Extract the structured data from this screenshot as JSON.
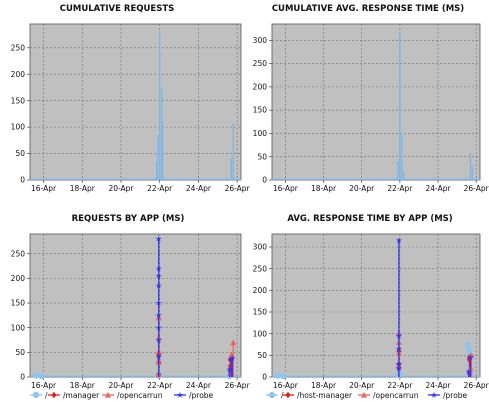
{
  "chart_data": [
    {
      "type": "bar",
      "title": "CUMULATIVE REQUESTS",
      "xlabel": "",
      "ylabel": "",
      "xticks": [
        "16-Apr",
        "18-Apr",
        "20-Apr",
        "22-Apr",
        "24-Apr",
        "26-Apr"
      ],
      "xlim": [
        15.3,
        26.2
      ],
      "ylim": [
        0,
        295
      ],
      "yticks": [
        0,
        50,
        100,
        150,
        200,
        250
      ],
      "grid": true,
      "series": [
        {
          "color": "#7eb6e6",
          "x": [
            15.6,
            15.9,
            16.2,
            16.6,
            17.0,
            18.1,
            20.6,
            21.6,
            21.8,
            21.85,
            21.9,
            22.0,
            22.1,
            22.15,
            25.5,
            25.7,
            25.8
          ],
          "values": [
            1,
            1,
            1,
            1,
            1,
            1,
            1,
            2,
            5,
            35,
            85,
            280,
            175,
            110,
            5,
            40,
            108
          ]
        }
      ]
    },
    {
      "type": "bar",
      "title": "CUMULATIVE AVG. RESPONSE TIME (MS)",
      "xlabel": "",
      "ylabel": "",
      "xticks": [
        "16-Apr",
        "18-Apr",
        "20-Apr",
        "22-Apr",
        "24-Apr",
        "26-Apr"
      ],
      "xlim": [
        15.3,
        26.2
      ],
      "ylim": [
        0,
        335
      ],
      "yticks": [
        0,
        50,
        100,
        150,
        200,
        250,
        300
      ],
      "grid": true,
      "series": [
        {
          "color": "#7eb6e6",
          "x": [
            15.6,
            16.0,
            17.0,
            18.1,
            20.6,
            21.6,
            21.8,
            21.9,
            22.0,
            22.1,
            22.2,
            25.5,
            25.7,
            25.8
          ],
          "values": [
            1,
            1,
            1,
            1,
            1,
            2,
            5,
            40,
            315,
            100,
            20,
            5,
            58,
            30
          ]
        }
      ]
    },
    {
      "type": "line",
      "title": "REQUESTS BY APP (MS)",
      "xlabel": "",
      "ylabel": "",
      "xticks": [
        "16-Apr",
        "18-Apr",
        "20-Apr",
        "22-Apr",
        "24-Apr",
        "26-Apr"
      ],
      "xlim": [
        15.3,
        26.2
      ],
      "ylim": [
        0,
        290
      ],
      "yticks": [
        0,
        50,
        100,
        150,
        200,
        250
      ],
      "grid": true,
      "legend": "bottom",
      "series": [
        {
          "name": "/",
          "color": "#8fc4ee",
          "marker": "circle",
          "x": [
            15.6,
            15.9,
            21.9,
            21.95,
            22.0,
            25.6,
            25.7
          ],
          "values": [
            3,
            2,
            3,
            6,
            4,
            2,
            5
          ]
        },
        {
          "name": "/manager",
          "color": "#e02020",
          "marker": "diamond",
          "x": [
            21.95,
            21.95,
            21.95,
            25.65,
            25.65
          ],
          "values": [
            5,
            30,
            45,
            22,
            35
          ]
        },
        {
          "name": "/opencarrun",
          "color": "#f06060",
          "marker": "triangle",
          "x": [
            21.95,
            21.95,
            21.95,
            21.95,
            21.95,
            25.65,
            25.7,
            25.8
          ],
          "values": [
            5,
            30,
            52,
            80,
            120,
            8,
            45,
            70
          ]
        },
        {
          "name": "/probe",
          "color": "#3535ee",
          "marker": "star",
          "x": [
            21.95,
            21.95,
            21.95,
            21.95,
            21.95,
            21.95,
            21.95,
            21.95,
            21.95,
            25.6,
            25.7,
            25.75
          ],
          "values": [
            40,
            75,
            100,
            125,
            150,
            185,
            205,
            220,
            280,
            15,
            35,
            38
          ]
        }
      ]
    },
    {
      "type": "line",
      "title": "AVG. RESPONSE TIME BY APP (MS)",
      "xlabel": "",
      "ylabel": "",
      "xticks": [
        "16-Apr",
        "18-Apr",
        "20-Apr",
        "22-Apr",
        "24-Apr",
        "26-Apr"
      ],
      "xlim": [
        15.3,
        26.2
      ],
      "ylim": [
        0,
        330
      ],
      "yticks": [
        0,
        50,
        100,
        150,
        200,
        250,
        300
      ],
      "grid": true,
      "legend": "bottom",
      "series": [
        {
          "name": "/",
          "color": "#8fc4ee",
          "marker": "circle",
          "x": [
            15.6,
            15.9,
            21.9,
            22.0,
            25.55,
            25.65,
            25.7
          ],
          "values": [
            3,
            2,
            5,
            8,
            75,
            60,
            10
          ]
        },
        {
          "name": "/host-manager",
          "color": "#e02020",
          "marker": "diamond",
          "x": [
            21.95,
            21.95,
            21.95,
            25.65,
            25.65
          ],
          "values": [
            20,
            30,
            60,
            40,
            45
          ]
        },
        {
          "name": "/opencarrun",
          "color": "#f06060",
          "marker": "triangle",
          "x": [
            21.95,
            21.95,
            21.95,
            21.95,
            25.7,
            25.75
          ],
          "values": [
            25,
            55,
            80,
            100,
            20,
            50
          ]
        },
        {
          "name": "/probe",
          "color": "#3535ee",
          "marker": "star",
          "x": [
            21.95,
            21.95,
            21.95,
            21.95,
            21.95,
            25.6,
            25.7
          ],
          "values": [
            20,
            30,
            65,
            95,
            315,
            12,
            45
          ]
        }
      ]
    }
  ]
}
